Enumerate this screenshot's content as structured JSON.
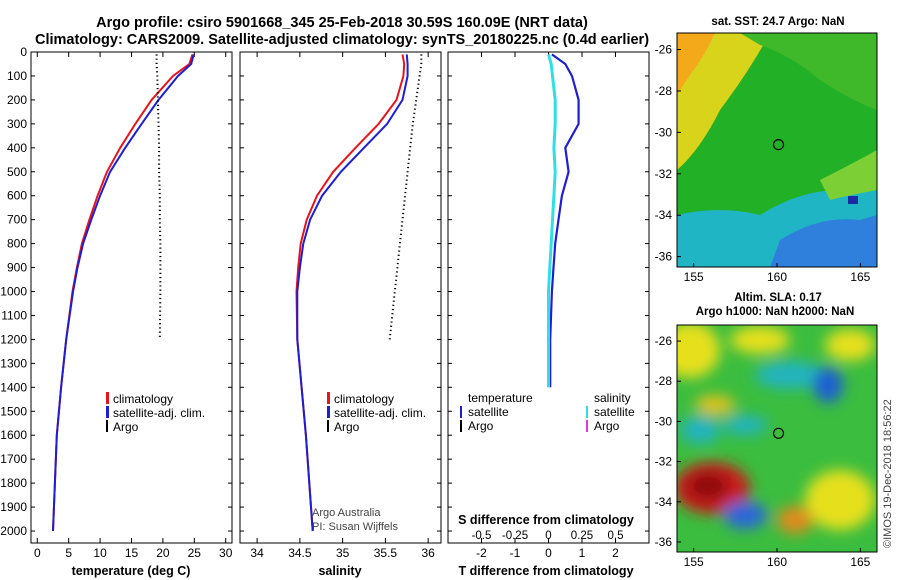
{
  "title_line1": "Argo profile: csiro 5901668_345 25-Feb-2018 30.59S 160.09E (NRT data)",
  "title_line2": "Climatology: CARS2009. Satellite-adjusted climatology: synTS_20180225.nc (0.4d earlier)",
  "colors": {
    "climatology": "#e8141c",
    "satellite": "#1e1ed2",
    "argo": "#000000",
    "sat_salinity": "#2ee0e6",
    "argo_salinity": "#e23adf"
  },
  "credit": "Argo Australia",
  "credit_pi": "PI: Susan Wijffels",
  "imos_stamp": "©IMOS 19-Dec-2018 18:56:22",
  "chart_data": [
    {
      "type": "line",
      "id": "temperature",
      "xlabel": "temperature (deg C)",
      "xlim": [
        -1,
        31
      ],
      "ylim": [
        0,
        2050
      ],
      "xticks": [
        "0",
        "5",
        "10",
        "15",
        "20",
        "25",
        "30"
      ],
      "yticks": [
        "0",
        "100",
        "200",
        "300",
        "400",
        "500",
        "600",
        "700",
        "800",
        "900",
        "1000",
        "1100",
        "1200",
        "1300",
        "1400",
        "1500",
        "1600",
        "1700",
        "1800",
        "1900",
        "2000"
      ],
      "depth": [
        10,
        50,
        100,
        200,
        300,
        400,
        500,
        600,
        700,
        800,
        900,
        1000,
        1200,
        1400,
        1600,
        1800,
        2000
      ],
      "series": [
        {
          "name": "climatology",
          "values": [
            24.7,
            24.2,
            21.6,
            18.2,
            15.6,
            13.2,
            11.1,
            9.6,
            8.3,
            7.1,
            6.3,
            5.6,
            4.6,
            3.8,
            3.1,
            2.8,
            2.5
          ]
        },
        {
          "name": "satellite-adj. clim.",
          "values": [
            24.9,
            24.5,
            22.4,
            19.3,
            16.6,
            14.0,
            11.6,
            10.0,
            8.6,
            7.3,
            6.4,
            5.7,
            4.6,
            3.8,
            3.1,
            2.8,
            2.5
          ]
        },
        {
          "name": "Argo",
          "values": [
            19.0,
            19.0,
            19.1,
            19.2,
            19.3,
            19.4,
            19.4,
            19.5,
            19.5,
            19.6,
            19.6,
            19.6,
            19.5,
            null,
            null,
            null,
            null
          ]
        }
      ],
      "legend": [
        "climatology",
        "satellite-adj. clim.",
        "Argo"
      ]
    },
    {
      "type": "line",
      "id": "salinity",
      "xlabel": "salinity",
      "xlim": [
        33.8,
        36.15
      ],
      "ylim": [
        0,
        2050
      ],
      "xticks": [
        "34",
        "34.5",
        "35",
        "35.5",
        "36"
      ],
      "depth": [
        10,
        50,
        100,
        200,
        300,
        400,
        500,
        600,
        700,
        800,
        900,
        1000,
        1200,
        1400,
        1600,
        1800,
        2000
      ],
      "series": [
        {
          "name": "climatology",
          "values": [
            35.7,
            35.72,
            35.71,
            35.63,
            35.42,
            35.15,
            34.89,
            34.7,
            34.58,
            34.51,
            34.48,
            34.46,
            34.47,
            34.52,
            34.57,
            34.61,
            34.65
          ]
        },
        {
          "name": "satellite-adj. clim.",
          "values": [
            35.75,
            35.76,
            35.76,
            35.7,
            35.52,
            35.25,
            34.98,
            34.76,
            34.62,
            34.54,
            34.5,
            34.47,
            34.47,
            34.52,
            34.57,
            34.61,
            34.65
          ]
        },
        {
          "name": "Argo",
          "values": [
            35.92,
            35.92,
            35.9,
            35.86,
            35.82,
            35.79,
            35.76,
            35.73,
            35.7,
            35.67,
            35.64,
            35.61,
            35.55,
            null,
            null,
            null,
            null
          ]
        }
      ],
      "legend": [
        "climatology",
        "satellite-adj. clim.",
        "Argo"
      ]
    },
    {
      "type": "line",
      "id": "difference",
      "xlabel": "T difference from climatology",
      "xlabel_top": "S difference from climatology",
      "xlim": [
        -3,
        3
      ],
      "ylim": [
        0,
        2050
      ],
      "xticks": [
        "-2",
        "-1",
        "0",
        "1",
        "2"
      ],
      "xticks_top": [
        "-0.5",
        "-0.25",
        "0",
        "0.25",
        "0.5"
      ],
      "depth": [
        10,
        50,
        100,
        200,
        300,
        400,
        500,
        600,
        700,
        800,
        900,
        1000,
        1200,
        1400
      ],
      "series": [
        {
          "name": "temperature satellite",
          "values": [
            0.1,
            0.5,
            0.7,
            0.9,
            0.9,
            0.5,
            0.6,
            0.4,
            0.3,
            0.2,
            0.15,
            0.1,
            0.05,
            0.05
          ]
        },
        {
          "name": "salinity satellite",
          "values": [
            0.0,
            0.02,
            0.03,
            0.05,
            0.05,
            0.04,
            0.05,
            0.04,
            0.03,
            0.02,
            0.01,
            0.0,
            0.0,
            0.0
          ]
        }
      ],
      "legend_left_title": "temperature",
      "legend_right_title": "salinity",
      "legend_left": [
        "satellite",
        "Argo"
      ],
      "legend_right": [
        "satellite",
        "Argo"
      ]
    },
    {
      "type": "heatmap",
      "id": "sst_map",
      "title": "sat. SST: 24.7 Argo: NaN",
      "xticks": [
        "155",
        "160",
        "165"
      ],
      "yticks": [
        "-26",
        "-28",
        "-30",
        "-32",
        "-34",
        "-36"
      ],
      "xlim": [
        154,
        166
      ],
      "ylim": [
        -36.5,
        -25.2
      ],
      "float_position": [
        160.09,
        -30.59
      ]
    },
    {
      "type": "heatmap",
      "id": "sla_map",
      "title": "Altim. SLA: 0.17",
      "subtitle": "Argo h1000: NaN h2000: NaN",
      "xticks": [
        "155",
        "160",
        "165"
      ],
      "yticks": [
        "-26",
        "-28",
        "-30",
        "-32",
        "-34",
        "-36"
      ],
      "xlim": [
        154,
        166
      ],
      "ylim": [
        -36.5,
        -25.2
      ],
      "float_position": [
        160.09,
        -30.59
      ]
    }
  ]
}
